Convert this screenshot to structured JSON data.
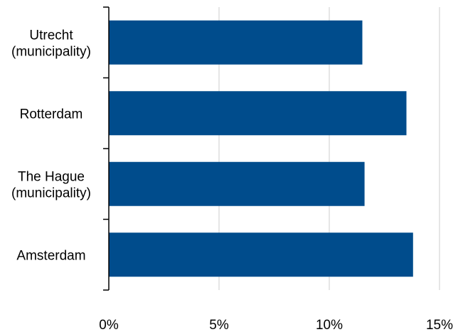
{
  "chart_data": {
    "type": "bar",
    "orientation": "horizontal",
    "categories": [
      [
        "Utrecht",
        "(municipality)"
      ],
      [
        "Rotterdam"
      ],
      [
        "The Hague",
        "(municipality)"
      ],
      [
        "Amsterdam"
      ]
    ],
    "values": [
      11.5,
      13.5,
      11.6,
      13.8
    ],
    "xlim": [
      0,
      15
    ],
    "xticks": [
      0,
      5,
      10,
      15
    ],
    "tick_labels": [
      "0%",
      "5%",
      "10%",
      "15%"
    ],
    "grid": "vertical",
    "colors": {
      "bar": "#004C8C",
      "grid": "#D9D9D9",
      "axis": "#000000"
    }
  }
}
